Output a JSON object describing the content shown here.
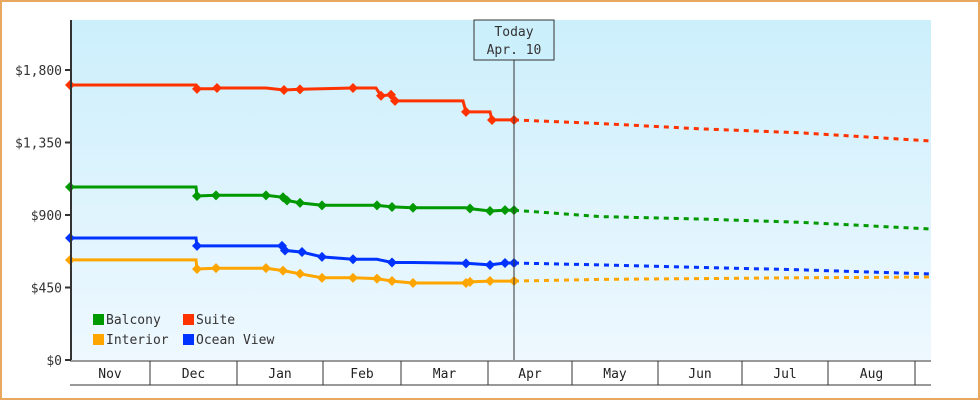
{
  "chart_data": {
    "type": "line",
    "title": "",
    "xlabel": "",
    "ylabel": "",
    "ylim": [
      0,
      2050
    ],
    "yticks": [
      {
        "value": 0,
        "label": "$0"
      },
      {
        "value": 450,
        "label": "$450"
      },
      {
        "value": 900,
        "label": "$900"
      },
      {
        "value": 1350,
        "label": "$1,350"
      },
      {
        "value": 1800,
        "label": "$1,800"
      }
    ],
    "months": [
      "Nov",
      "Dec",
      "Jan",
      "Feb",
      "Mar",
      "Apr",
      "May",
      "Jun",
      "Jul",
      "Aug"
    ],
    "today_marker": {
      "line1": "Today",
      "line2": "Apr. 10"
    },
    "legend": [
      {
        "name": "Balcony",
        "color": "#009900"
      },
      {
        "name": "Suite",
        "color": "#ff3300"
      },
      {
        "name": "Interior",
        "color": "#ffa500"
      },
      {
        "name": "Ocean View",
        "color": "#0033ff"
      }
    ],
    "series": [
      {
        "name": "Suite",
        "color": "#ff3300",
        "history": [
          [
            70,
            1707
          ],
          [
            196,
            1707
          ],
          [
            197,
            1683
          ],
          [
            216,
            1683
          ],
          [
            217,
            1688
          ],
          [
            266,
            1688
          ],
          [
            284,
            1676
          ],
          [
            300,
            1680
          ],
          [
            353,
            1688
          ],
          [
            376,
            1688
          ],
          [
            381,
            1640
          ],
          [
            391,
            1646
          ],
          [
            395,
            1608
          ],
          [
            463,
            1608
          ],
          [
            466,
            1540
          ],
          [
            490,
            1540
          ],
          [
            492,
            1490
          ],
          [
            514,
            1490
          ]
        ],
        "forecast": [
          [
            514,
            1490
          ],
          [
            600,
            1468
          ],
          [
            700,
            1435
          ],
          [
            800,
            1410
          ],
          [
            931,
            1359
          ]
        ]
      },
      {
        "name": "Balcony",
        "color": "#009900",
        "history": [
          [
            70,
            1074
          ],
          [
            196,
            1074
          ],
          [
            197,
            1018
          ],
          [
            216,
            1022
          ],
          [
            266,
            1022
          ],
          [
            283,
            1010
          ],
          [
            287,
            990
          ],
          [
            300,
            975
          ],
          [
            322,
            960
          ],
          [
            353,
            960
          ],
          [
            377,
            960
          ],
          [
            392,
            950
          ],
          [
            413,
            945
          ],
          [
            466,
            945
          ],
          [
            470,
            940
          ],
          [
            490,
            925
          ],
          [
            505,
            930
          ],
          [
            514,
            930
          ]
        ],
        "forecast": [
          [
            514,
            930
          ],
          [
            600,
            890
          ],
          [
            700,
            875
          ],
          [
            800,
            855
          ],
          [
            931,
            813
          ]
        ]
      },
      {
        "name": "Ocean View",
        "color": "#0033ff",
        "history": [
          [
            70,
            757
          ],
          [
            196,
            757
          ],
          [
            197,
            708
          ],
          [
            216,
            708
          ],
          [
            282,
            708
          ],
          [
            285,
            680
          ],
          [
            302,
            670
          ],
          [
            322,
            640
          ],
          [
            353,
            625
          ],
          [
            377,
            625
          ],
          [
            392,
            605
          ],
          [
            413,
            605
          ],
          [
            466,
            600
          ],
          [
            490,
            590
          ],
          [
            505,
            602
          ],
          [
            514,
            602
          ]
        ],
        "forecast": [
          [
            514,
            602
          ],
          [
            600,
            590
          ],
          [
            700,
            575
          ],
          [
            800,
            560
          ],
          [
            931,
            534
          ]
        ]
      },
      {
        "name": "Interior",
        "color": "#ffa500",
        "history": [
          [
            70,
            621
          ],
          [
            196,
            621
          ],
          [
            197,
            565
          ],
          [
            216,
            570
          ],
          [
            266,
            570
          ],
          [
            283,
            555
          ],
          [
            300,
            535
          ],
          [
            322,
            510
          ],
          [
            353,
            510
          ],
          [
            377,
            505
          ],
          [
            392,
            490
          ],
          [
            413,
            478
          ],
          [
            466,
            478
          ],
          [
            470,
            485
          ],
          [
            490,
            490
          ],
          [
            505,
            490
          ],
          [
            514,
            490
          ]
        ],
        "forecast": [
          [
            514,
            490
          ],
          [
            600,
            500
          ],
          [
            700,
            505
          ],
          [
            800,
            510
          ],
          [
            931,
            515
          ]
        ]
      }
    ]
  }
}
